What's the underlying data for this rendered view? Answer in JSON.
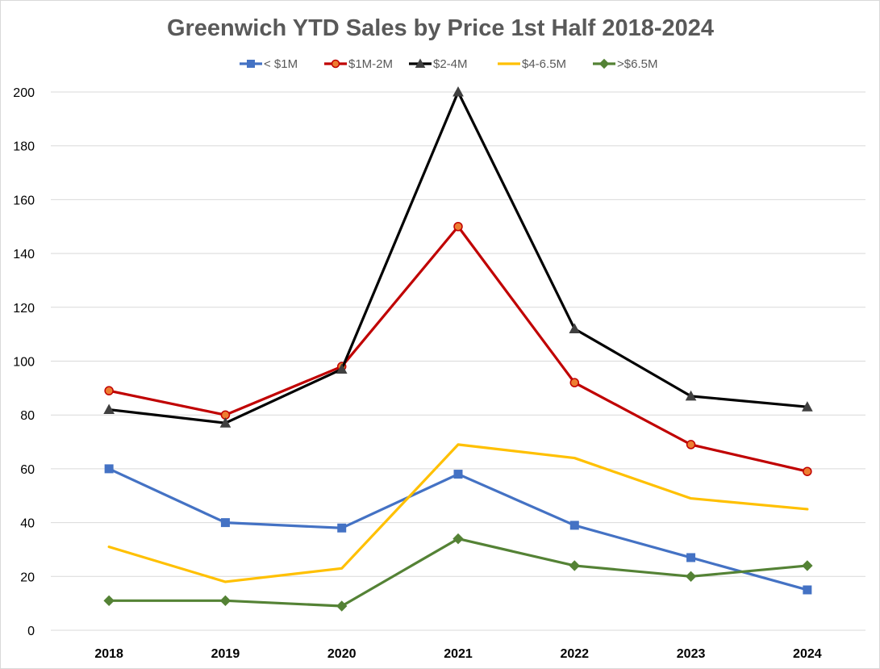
{
  "chart_data": {
    "type": "line",
    "title": "Greenwich YTD Sales by Price  1st Half  2018-2024",
    "xlabel": "",
    "ylabel": "",
    "categories": [
      "2018",
      "2019",
      "2020",
      "2021",
      "2022",
      "2023",
      "2024"
    ],
    "ylim": [
      0,
      200
    ],
    "yticks": [
      0,
      20,
      40,
      60,
      80,
      100,
      120,
      140,
      160,
      180,
      200
    ],
    "grid": true,
    "legend": "top",
    "series": [
      {
        "name": "< $1M",
        "color": "#4472c4",
        "marker": "square",
        "values": [
          60,
          40,
          38,
          58,
          39,
          27,
          15
        ]
      },
      {
        "name": "$1M-2M",
        "color": "#c00000",
        "marker": "circle",
        "marker_fill": "#ed7d31",
        "values": [
          89,
          80,
          98,
          150,
          92,
          69,
          59
        ]
      },
      {
        "name": "$2-4M",
        "color": "#000000",
        "marker": "triangle",
        "marker_fill": "#404040",
        "values": [
          82,
          77,
          97,
          200,
          112,
          87,
          83
        ]
      },
      {
        "name": "$4-6.5M",
        "color": "#ffc000",
        "marker": "none",
        "values": [
          31,
          18,
          23,
          69,
          64,
          49,
          45
        ]
      },
      {
        "name": ">$6.5M",
        "color": "#548235",
        "marker": "diamond",
        "marker_fill": "#548235",
        "values": [
          11,
          11,
          9,
          34,
          24,
          20,
          24
        ]
      }
    ]
  }
}
